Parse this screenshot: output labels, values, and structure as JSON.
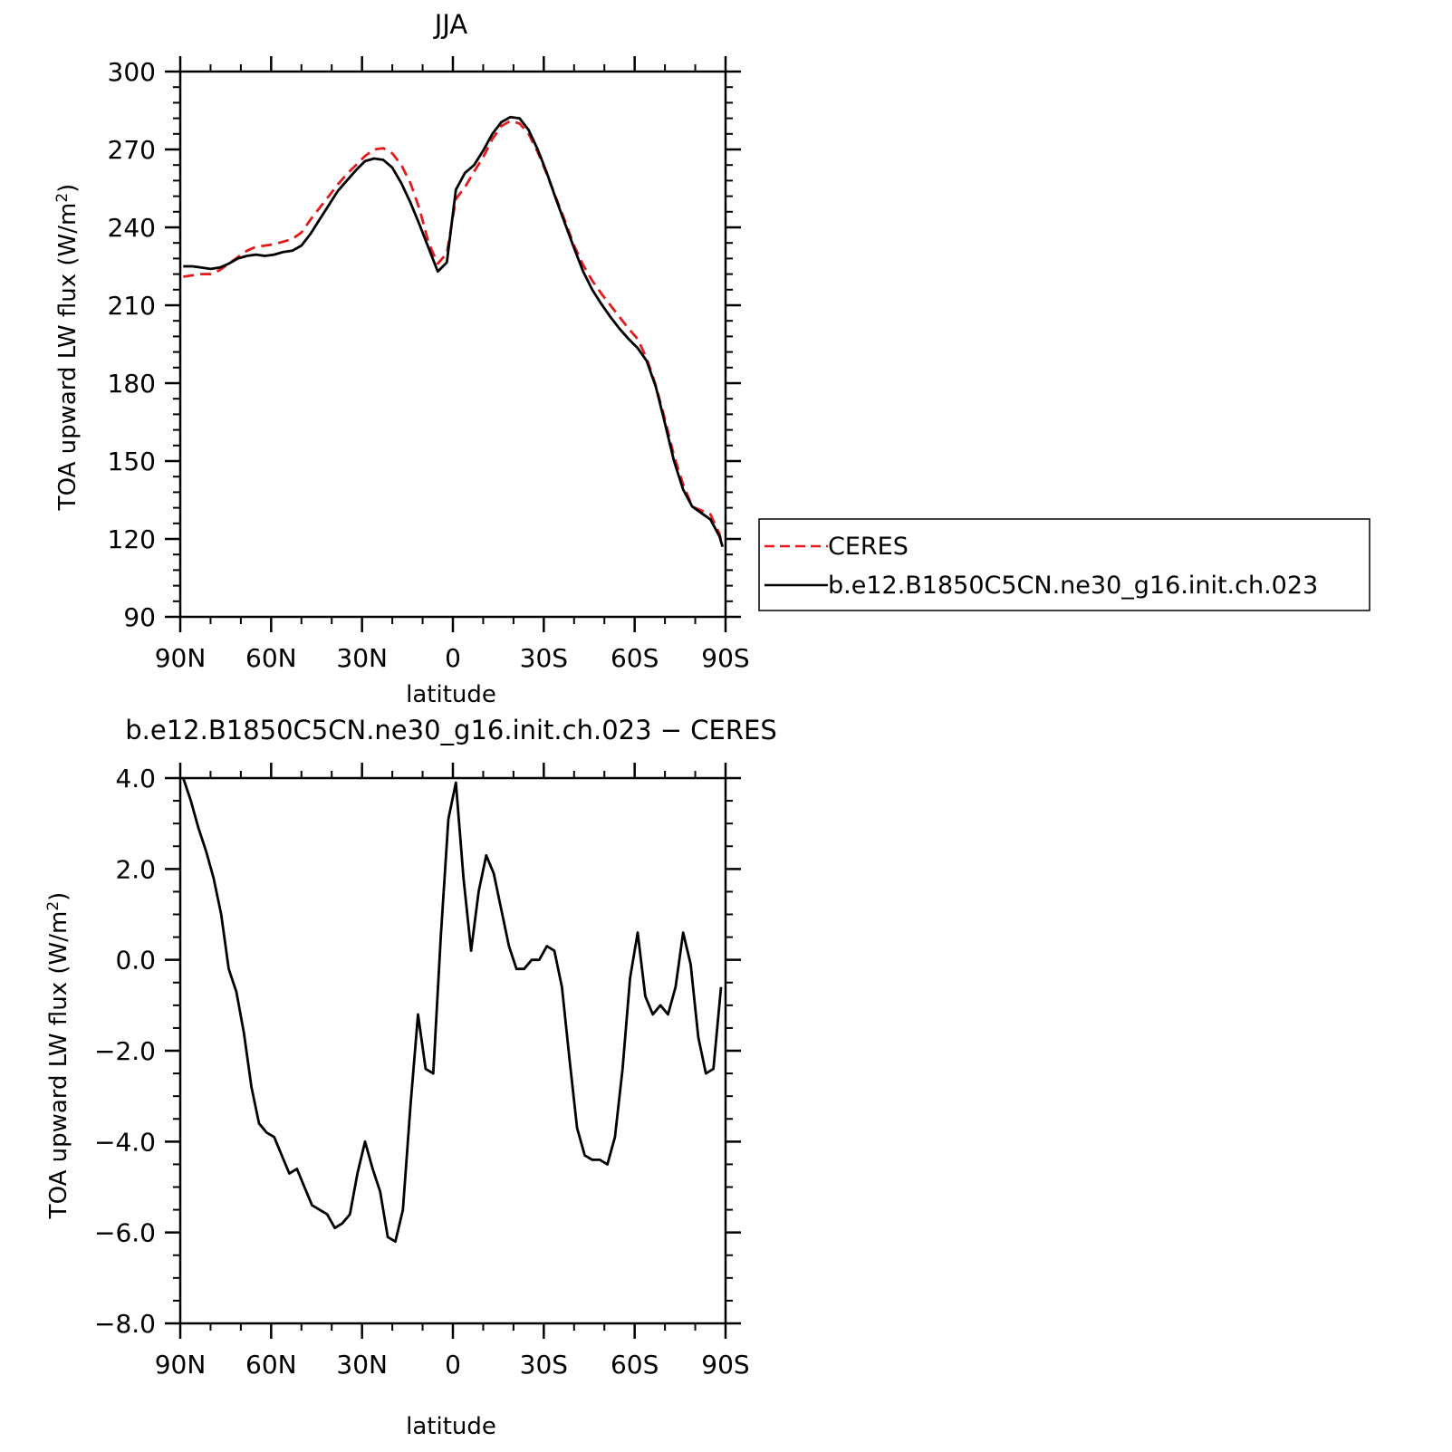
{
  "chart_data": [
    {
      "type": "line",
      "title": "JJA",
      "xlabel": "latitude",
      "ylabel": "TOA upward LW flux (W/m²)",
      "x_tick_labels": [
        "90N",
        "60N",
        "30N",
        "0",
        "30S",
        "60S",
        "90S"
      ],
      "x_ticks": [
        90,
        60,
        30,
        0,
        -30,
        -60,
        -90
      ],
      "xlim": [
        90,
        -90
      ],
      "ylim": [
        90,
        300
      ],
      "y_ticks": [
        90,
        120,
        150,
        180,
        210,
        240,
        270,
        300
      ],
      "y_tick_labels": [
        "90",
        "120",
        "150",
        "180",
        "210",
        "240",
        "270",
        "300"
      ],
      "legend_position": "right",
      "series": [
        {
          "name": "CERES",
          "color": "#e31a1c",
          "dash": "dashed",
          "x": [
            89,
            86,
            83,
            80,
            77,
            74,
            71,
            68,
            65,
            62,
            59,
            56,
            53,
            50,
            47,
            44,
            41,
            38,
            35,
            32,
            29,
            26,
            23,
            20,
            17,
            14,
            11,
            8,
            5,
            2,
            -1,
            -4,
            -7,
            -10,
            -13,
            -16,
            -19,
            -22,
            -25,
            -28,
            -31,
            -34,
            -37,
            -40,
            -43,
            -46,
            -49,
            -52,
            -55,
            -58,
            -61,
            -64,
            -67,
            -70,
            -73,
            -76,
            -79,
            -82,
            -85,
            -88,
            -89
          ],
          "values": [
            221,
            221.5,
            222,
            222,
            223.5,
            226,
            228.5,
            231,
            232.5,
            233,
            233.5,
            234.5,
            235.5,
            238,
            243,
            247.5,
            252,
            256.5,
            260.5,
            264,
            267.5,
            270,
            270.5,
            268.5,
            264,
            257,
            247,
            234,
            226,
            230,
            251,
            255.5,
            261.5,
            267,
            274,
            279,
            281,
            280,
            276,
            269,
            260.5,
            251.5,
            242.5,
            233,
            225.5,
            219.5,
            214.5,
            210,
            205.5,
            201,
            197,
            189.5,
            179,
            166,
            152,
            141,
            132.5,
            131,
            129.5,
            122,
            117
          ]
        },
        {
          "name": "b.e12.B1850C5CN.ne30_g16.init.ch.023",
          "color": "#000000",
          "dash": "solid",
          "x": [
            89,
            86,
            83,
            80,
            77,
            74,
            71,
            68,
            65,
            62,
            59,
            56,
            53,
            50,
            47,
            44,
            41,
            38,
            35,
            32,
            29,
            26,
            23,
            20,
            17,
            14,
            11,
            8,
            5,
            2,
            -1,
            -4,
            -7,
            -10,
            -13,
            -16,
            -19,
            -22,
            -25,
            -28,
            -31,
            -34,
            -37,
            -40,
            -43,
            -46,
            -49,
            -52,
            -55,
            -58,
            -61,
            -64,
            -67,
            -70,
            -73,
            -76,
            -79,
            -82,
            -85,
            -88,
            -89
          ],
          "values": [
            225,
            225,
            224.5,
            224,
            224.5,
            226,
            228,
            229,
            229.5,
            229,
            229.5,
            230.5,
            231,
            233,
            237.5,
            243,
            248.5,
            254,
            258,
            262,
            265.5,
            266.5,
            266,
            263,
            257,
            249.5,
            241,
            232,
            223,
            226.5,
            254.5,
            261,
            264,
            269.5,
            276,
            280.5,
            282.5,
            282,
            277.5,
            270,
            261,
            251,
            241.5,
            232,
            223,
            216,
            210.5,
            205.5,
            201,
            197,
            193.5,
            188.5,
            178.5,
            164.5,
            150,
            139,
            132.5,
            130,
            127.5,
            121,
            117
          ]
        }
      ]
    },
    {
      "type": "line",
      "title": "b.e12.B1850C5CN.ne30_g16.init.ch.023 − CERES",
      "xlabel": "latitude",
      "ylabel": "TOA upward LW flux (W/m²)",
      "x_tick_labels": [
        "90N",
        "60N",
        "30N",
        "0",
        "30S",
        "60S",
        "90S"
      ],
      "x_ticks": [
        90,
        60,
        30,
        0,
        -30,
        -60,
        -90
      ],
      "xlim": [
        90,
        -90
      ],
      "ylim": [
        -8,
        4
      ],
      "y_ticks": [
        -8,
        -6,
        -4,
        -2,
        0,
        2,
        4
      ],
      "y_tick_labels": [
        "−8.0",
        "−6.0",
        "−4.0",
        "−2.0",
        "0.0",
        "2.0",
        "4.0"
      ],
      "series": [
        {
          "color": "#000000",
          "x": [
            89,
            86.5,
            84,
            81.5,
            79,
            76.5,
            74,
            71.5,
            69,
            66.5,
            64,
            61.5,
            59,
            56.5,
            54,
            51.5,
            49,
            46.5,
            44,
            41.5,
            39,
            36.5,
            34,
            31.5,
            29,
            26.5,
            24,
            21.5,
            19,
            16.5,
            14,
            11.5,
            9,
            6.5,
            4,
            1.5,
            -1,
            -3.5,
            -6,
            -8.5,
            -11,
            -13.5,
            -16,
            -18.5,
            -21,
            -23.5,
            -26,
            -28.5,
            -31,
            -33.5,
            -36,
            -38.5,
            -41,
            -43.5,
            -46,
            -48.5,
            -51,
            -53.5,
            -56,
            -58.5,
            -61,
            -63.5,
            -66,
            -68.5,
            -71,
            -73.5,
            -76,
            -78.5,
            -81,
            -83.5,
            -86,
            -88.5
          ],
          "values": [
            4.0,
            3.5,
            2.9,
            2.4,
            1.8,
            1.0,
            -0.2,
            -0.7,
            -1.6,
            -2.8,
            -3.6,
            -3.8,
            -3.9,
            -4.3,
            -4.7,
            -4.6,
            -5.0,
            -5.4,
            -5.5,
            -5.6,
            -5.9,
            -5.8,
            -5.6,
            -4.7,
            -4.0,
            -4.6,
            -5.1,
            -6.1,
            -6.2,
            -5.5,
            -3.2,
            -1.2,
            -2.4,
            -2.5,
            0.5,
            3.1,
            3.9,
            1.8,
            0.2,
            1.5,
            2.3,
            1.9,
            1.1,
            0.3,
            -0.2,
            -0.2,
            0.0,
            0.0,
            0.3,
            0.2,
            -0.6,
            -2.2,
            -3.7,
            -4.3,
            -4.4,
            -4.4,
            -4.5,
            -3.9,
            -2.4,
            -0.4,
            0.6,
            -0.8,
            -1.2,
            -1.0,
            -1.2,
            -0.6,
            0.6,
            -0.1,
            -1.7,
            -2.5,
            -2.4,
            -0.6
          ]
        }
      ]
    }
  ]
}
